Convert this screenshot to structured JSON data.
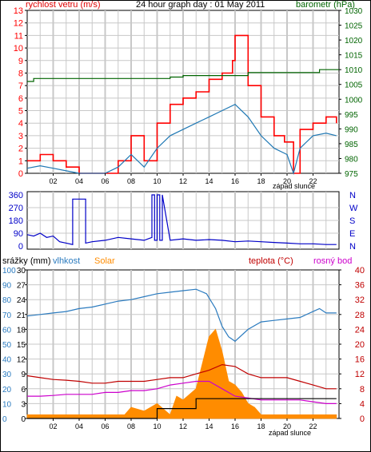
{
  "title": "24 hour graph day : 01 May 2011",
  "colors": {
    "frame": "#000000",
    "grid": "#c8c8c8",
    "wind": "#ff0000",
    "wind_avg": "#1f78b4",
    "baro": "#006400",
    "dir": "#0000c8",
    "humidity": "#2b7bbf",
    "rain": "#e05a00",
    "solar": "#ff8c00",
    "temp": "#c00000",
    "dew": "#cc00cc",
    "rain_total": "#000000"
  },
  "panel1": {
    "left_label": "rychlost vetru (m/s)",
    "right_label": "barometr (hPa)",
    "left_ticks": [
      "0",
      "1",
      "2",
      "3",
      "4",
      "5",
      "6",
      "7",
      "8",
      "9",
      "10",
      "11",
      "12",
      "13"
    ],
    "right_ticks": [
      "975",
      "980",
      "985",
      "990",
      "995",
      "1000",
      "1005",
      "1010",
      "1015",
      "1020",
      "1025",
      "1030"
    ],
    "sunset_label": "západ slunce"
  },
  "panel2": {
    "left_ticks": [
      "0",
      "90",
      "180",
      "270",
      "360"
    ],
    "right_ticks": [
      "N",
      "E",
      "S",
      "W",
      "N"
    ]
  },
  "panel3": {
    "label_rain": "srážky (mm)",
    "label_humidity": "vlhkost",
    "label_solar": "Solar",
    "label_temp": "teplota (°C)",
    "label_dew": "rosný bod",
    "rain_ticks": [
      "0",
      "3",
      "6",
      "9",
      "12",
      "15",
      "18",
      "21",
      "24",
      "27",
      "30"
    ],
    "humidity_ticks": [
      "0",
      "10",
      "20",
      "30",
      "40",
      "50",
      "60",
      "70",
      "80",
      "90",
      "100"
    ],
    "temp_ticks": [
      "0",
      "4",
      "8",
      "12",
      "16",
      "20",
      "24",
      "28",
      "32",
      "36",
      "40"
    ],
    "sunset_label": "západ slunce"
  },
  "hour_labels": [
    "02",
    "04",
    "06",
    "08",
    "10",
    "12",
    "14",
    "16",
    "18",
    "20",
    "22"
  ],
  "chart_data": [
    {
      "type": "line",
      "title": "24 hour graph day : 01 May 2011",
      "x_unit": "hour",
      "xlim": [
        0,
        24
      ],
      "ylabel": "rychlost vetru (m/s)",
      "ylim": [
        0,
        13
      ],
      "y2label": "barometr (hPa)",
      "y2lim": [
        975,
        1030
      ],
      "series": [
        {
          "axis": "y",
          "x": [
            0,
            1,
            2,
            3,
            4,
            5,
            6,
            7,
            8,
            9,
            10,
            11,
            12,
            13,
            14,
            15,
            15.8,
            16,
            17,
            18,
            19,
            19.8,
            20.5,
            21,
            22,
            23,
            23.8
          ],
          "values": [
            1,
            1.5,
            1,
            0.5,
            0,
            0,
            0,
            1,
            3,
            1,
            4,
            5.5,
            6,
            6.5,
            7.5,
            8,
            9,
            11,
            7,
            4.5,
            3,
            2.5,
            0,
            3.5,
            4,
            4.5,
            4
          ]
        },
        {
          "axis": "y",
          "x": [
            0,
            1,
            2,
            3,
            4,
            5,
            6,
            7,
            8,
            9,
            10,
            11,
            12,
            13,
            14,
            15,
            16,
            17,
            18,
            19,
            20,
            20.5,
            21,
            22,
            23,
            23.8
          ],
          "values": [
            0.4,
            0.6,
            0.4,
            0.2,
            0,
            0,
            0,
            0.5,
            1.5,
            0.5,
            2,
            3,
            3.5,
            4,
            4.5,
            5,
            5.5,
            4.5,
            3,
            2,
            1.5,
            0,
            2,
            3,
            3.2,
            3
          ]
        },
        {
          "axis": "y2",
          "x": [
            0,
            0.5,
            4.5,
            11,
            12,
            16,
            17,
            22,
            22.5,
            24
          ],
          "values": [
            1006,
            1007,
            1007,
            1007.5,
            1008,
            1008,
            1009,
            1009,
            1010,
            1010
          ]
        }
      ]
    },
    {
      "type": "line",
      "x_unit": "hour",
      "xlim": [
        0,
        24
      ],
      "ylim": [
        0,
        360
      ],
      "y_ticks": [
        "0",
        "90",
        "180",
        "270",
        "360"
      ],
      "y2_ticks": [
        "N",
        "E",
        "S",
        "W",
        "N"
      ],
      "series": [
        {
          "x": [
            0,
            0.5,
            1,
            1.5,
            2,
            2.5,
            3,
            3.5,
            3.5,
            4.5,
            4.5,
            5,
            6,
            7,
            8,
            9,
            9.6,
            9.6,
            9.8,
            9.8,
            10,
            10,
            10.2,
            10.2,
            10.4,
            10.4,
            11,
            12,
            13,
            14,
            15,
            16,
            17,
            18,
            19,
            20,
            21,
            22,
            23,
            23.8
          ],
          "values": [
            80,
            70,
            90,
            60,
            70,
            30,
            20,
            10,
            330,
            330,
            20,
            30,
            40,
            60,
            50,
            40,
            60,
            360,
            360,
            40,
            40,
            360,
            360,
            40,
            40,
            360,
            40,
            50,
            40,
            45,
            40,
            30,
            35,
            30,
            25,
            20,
            15,
            15,
            10,
            10
          ]
        }
      ]
    },
    {
      "type": "line",
      "x_unit": "hour",
      "xlim": [
        0,
        24
      ],
      "ylabel": "srážky (mm)",
      "ylim": [
        0,
        30
      ],
      "y_humidity_lim": [
        0,
        100
      ],
      "y2label": "teplota (°C)",
      "y2lim": [
        0,
        40
      ],
      "series": [
        {
          "axis": "humidity",
          "x": [
            0,
            1,
            2,
            3,
            4,
            5,
            6,
            7,
            8,
            9,
            10,
            11,
            12,
            13,
            13.8,
            14.5,
            15,
            15.5,
            16,
            17,
            18,
            19,
            20,
            21,
            22,
            22.5,
            23,
            23.8
          ],
          "values": [
            69,
            70,
            71,
            72,
            74,
            75,
            77,
            79,
            80,
            82,
            84,
            85,
            86,
            87,
            84,
            74,
            62,
            55,
            52,
            60,
            65,
            66,
            67,
            68,
            72,
            74,
            71,
            71
          ]
        },
        {
          "axis": "y2",
          "x": [
            0,
            1,
            2,
            3,
            4,
            5,
            6,
            7,
            8,
            9,
            10,
            11,
            12,
            13,
            14,
            15,
            16,
            17,
            18,
            19,
            20,
            21,
            22,
            23,
            23.8
          ],
          "values": [
            11.5,
            11,
            10.5,
            10.3,
            10,
            9.5,
            9.5,
            10,
            10,
            10,
            10.5,
            11,
            11,
            12,
            13,
            14.5,
            14,
            12,
            11,
            11,
            11,
            10,
            9,
            8,
            8
          ]
        },
        {
          "axis": "y2",
          "x": [
            0,
            1,
            2,
            3,
            4,
            5,
            6,
            7,
            8,
            9,
            10,
            11,
            12,
            13,
            14,
            15,
            16,
            17,
            18,
            19,
            20,
            21,
            22,
            23,
            23.8
          ],
          "values": [
            6,
            6,
            6.2,
            6.5,
            6.5,
            6.5,
            7,
            7,
            7.5,
            7.5,
            8,
            9,
            9.5,
            10,
            10,
            8,
            6,
            5.5,
            5,
            5,
            5,
            5,
            4.5,
            4,
            4
          ]
        },
        {
          "axis": "y2",
          "x": [
            0,
            6,
            7.5,
            8,
            9,
            10,
            11,
            11.5,
            12,
            13,
            14,
            14.5,
            15,
            15.5,
            16,
            16.5,
            17,
            17.5,
            18,
            20,
            22,
            23.8
          ],
          "values": [
            1,
            1,
            1,
            3,
            2,
            4,
            1,
            6,
            5,
            8,
            22,
            24,
            18,
            10,
            9,
            7,
            4,
            3,
            1,
            1,
            1,
            1
          ]
        },
        {
          "axis": "y",
          "x": [
            0,
            8,
            10,
            11,
            12,
            13,
            14,
            15,
            16,
            18,
            20,
            22,
            23.8
          ],
          "values": [
            0,
            0,
            2,
            2,
            2,
            4,
            4,
            4,
            4,
            4,
            4,
            4,
            4
          ]
        }
      ]
    }
  ]
}
